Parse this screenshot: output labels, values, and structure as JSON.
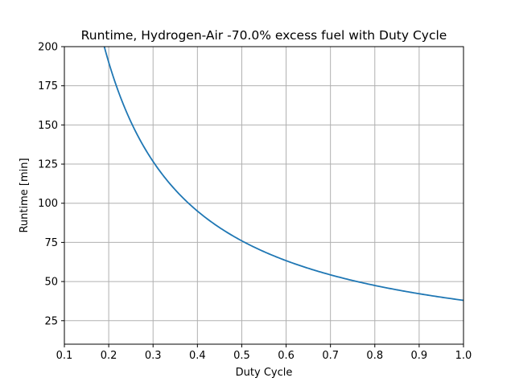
{
  "chart_data": {
    "type": "line",
    "title": "Runtime, Hydrogen-Air -70.0% excess fuel with Duty Cycle",
    "xlabel": "Duty Cycle",
    "ylabel": "Runtime [min]",
    "xlim": [
      0.1,
      1.0
    ],
    "ylim": [
      10,
      200
    ],
    "grid": true,
    "x_ticks": [
      0.1,
      0.2,
      0.3,
      0.4,
      0.5,
      0.6,
      0.7,
      0.8,
      0.9,
      1.0
    ],
    "x_tick_labels": [
      "0.1",
      "0.2",
      "0.3",
      "0.4",
      "0.5",
      "0.6",
      "0.7",
      "0.8",
      "0.9",
      "1.0"
    ],
    "y_ticks": [
      25,
      50,
      75,
      100,
      125,
      150,
      175,
      200
    ],
    "y_tick_labels": [
      "25",
      "50",
      "75",
      "100",
      "125",
      "150",
      "175",
      "200"
    ],
    "series": [
      {
        "name": "Runtime",
        "color": "#1f77b4",
        "x": [
          0.19,
          0.2,
          0.25,
          0.3,
          0.35,
          0.4,
          0.5,
          0.6,
          0.7,
          0.8,
          0.9,
          1.0
        ],
        "y": [
          200,
          190,
          152,
          126.7,
          108.6,
          95,
          76,
          63.3,
          54.3,
          47.5,
          42.2,
          38
        ]
      }
    ]
  }
}
